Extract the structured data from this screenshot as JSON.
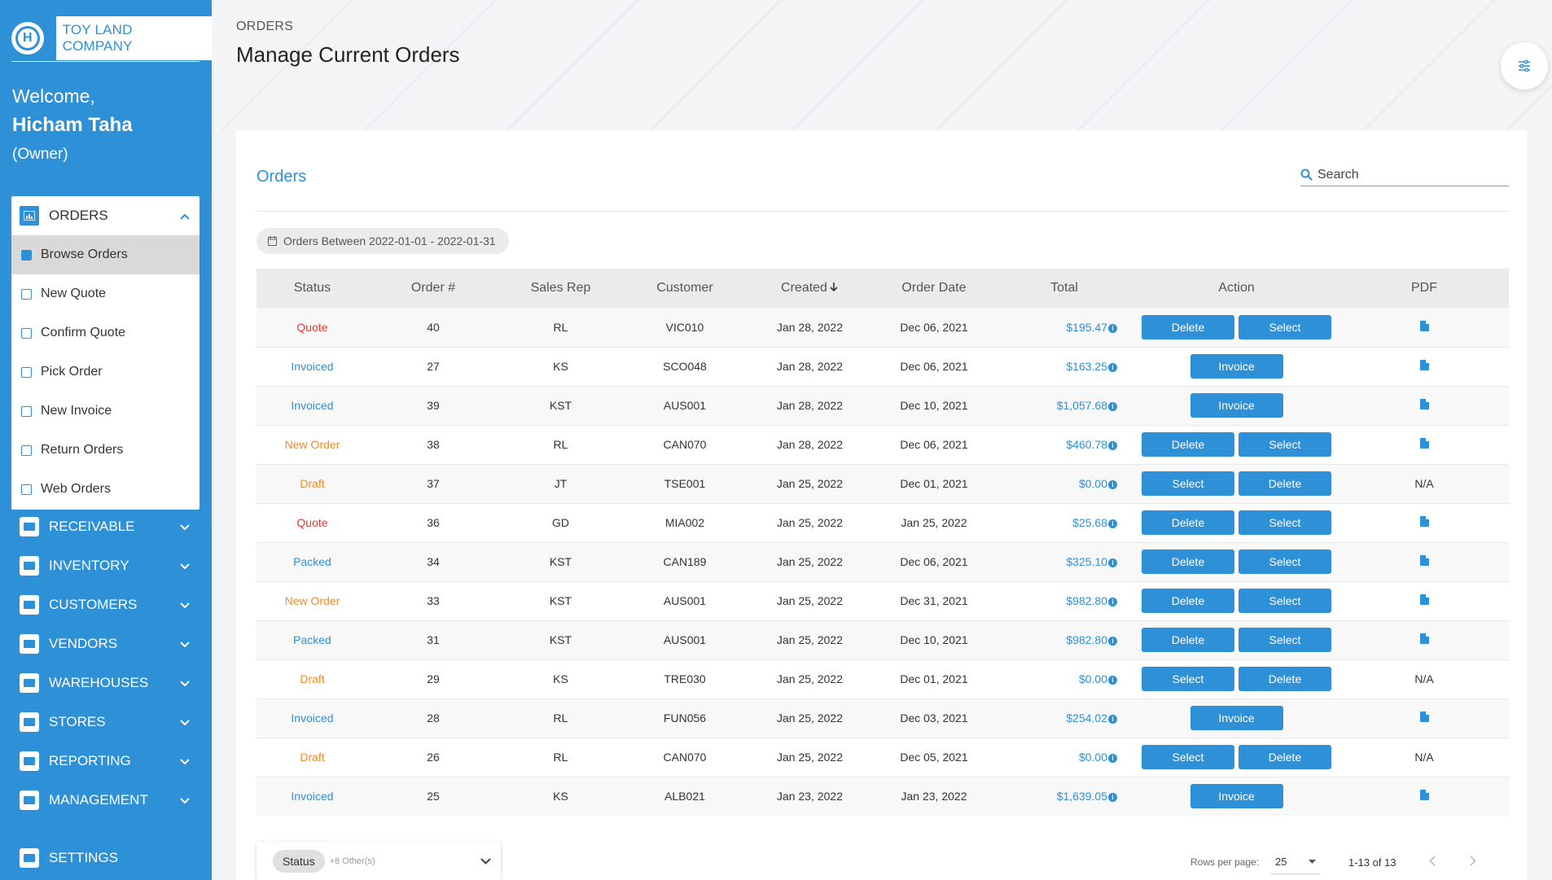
{
  "brand": {
    "name": "TOY LAND COMPANY",
    "logo_letter": "H"
  },
  "welcome": {
    "greeting": "Welcome,",
    "user": "Hicham Taha",
    "role": "(Owner)"
  },
  "sidebar": {
    "orders_label": "ORDERS",
    "orders_items": [
      {
        "label": "Browse Orders",
        "active": true
      },
      {
        "label": "New Quote"
      },
      {
        "label": "Confirm Quote"
      },
      {
        "label": "Pick Order"
      },
      {
        "label": "New Invoice"
      },
      {
        "label": "Return Orders"
      },
      {
        "label": "Web Orders"
      }
    ],
    "nav": [
      "RECEIVABLE",
      "INVENTORY",
      "CUSTOMERS",
      "VENDORS",
      "WAREHOUSES",
      "STORES",
      "REPORTING",
      "MANAGEMENT",
      "SETTINGS"
    ]
  },
  "header": {
    "breadcrumb": "ORDERS",
    "title": "Manage Current Orders"
  },
  "card": {
    "title": "Orders",
    "search_placeholder": "Search",
    "date_chip": "Orders Between 2022-01-01 - 2022-01-31"
  },
  "table": {
    "columns": [
      "Status",
      "Order #",
      "Sales Rep",
      "Customer",
      "Created",
      "Order Date",
      "Total",
      "Action",
      "PDF"
    ],
    "rows": [
      {
        "status": "Quote",
        "order": "40",
        "rep": "RL",
        "customer": "VIC010",
        "created": "Jan 28, 2022",
        "date": "Dec 06, 2021",
        "total": "$195.47",
        "actions": [
          "Delete",
          "Select"
        ],
        "pdf": ""
      },
      {
        "status": "Invoiced",
        "order": "27",
        "rep": "KS",
        "customer": "SCO048",
        "created": "Jan 28, 2022",
        "date": "Dec 06, 2021",
        "total": "$163.25",
        "actions": [
          "Invoice"
        ],
        "pdf": ""
      },
      {
        "status": "Invoiced",
        "order": "39",
        "rep": "KST",
        "customer": "AUS001",
        "created": "Jan 28, 2022",
        "date": "Dec 10, 2021",
        "total": "$1,057.68",
        "actions": [
          "Invoice"
        ],
        "pdf": ""
      },
      {
        "status": "New Order",
        "order": "38",
        "rep": "RL",
        "customer": "CAN070",
        "created": "Jan 28, 2022",
        "date": "Dec 06, 2021",
        "total": "$460.78",
        "actions": [
          "Delete",
          "Select"
        ],
        "pdf": ""
      },
      {
        "status": "Draft",
        "order": "37",
        "rep": "JT",
        "customer": "TSE001",
        "created": "Jan 25, 2022",
        "date": "Dec 01, 2021",
        "total": "$0.00",
        "actions": [
          "Select",
          "Delete"
        ],
        "pdf": "N/A"
      },
      {
        "status": "Quote",
        "order": "36",
        "rep": "GD",
        "customer": "MIA002",
        "created": "Jan 25, 2022",
        "date": "Jan 25, 2022",
        "total": "$25.68",
        "actions": [
          "Delete",
          "Select"
        ],
        "pdf": ""
      },
      {
        "status": "Packed",
        "order": "34",
        "rep": "KST",
        "customer": "CAN189",
        "created": "Jan 25, 2022",
        "date": "Dec 06, 2021",
        "total": "$325.10",
        "actions": [
          "Delete",
          "Select"
        ],
        "pdf": ""
      },
      {
        "status": "New Order",
        "order": "33",
        "rep": "KST",
        "customer": "AUS001",
        "created": "Jan 25, 2022",
        "date": "Dec 31, 2021",
        "total": "$982.80",
        "actions": [
          "Delete",
          "Select"
        ],
        "pdf": ""
      },
      {
        "status": "Packed",
        "order": "31",
        "rep": "KST",
        "customer": "AUS001",
        "created": "Jan 25, 2022",
        "date": "Dec 10, 2021",
        "total": "$982.80",
        "actions": [
          "Delete",
          "Select"
        ],
        "pdf": ""
      },
      {
        "status": "Draft",
        "order": "29",
        "rep": "KS",
        "customer": "TRE030",
        "created": "Jan 25, 2022",
        "date": "Dec 01, 2021",
        "total": "$0.00",
        "actions": [
          "Select",
          "Delete"
        ],
        "pdf": "N/A"
      },
      {
        "status": "Invoiced",
        "order": "28",
        "rep": "RL",
        "customer": "FUN056",
        "created": "Jan 25, 2022",
        "date": "Dec 03, 2021",
        "total": "$254.02",
        "actions": [
          "Invoice"
        ],
        "pdf": ""
      },
      {
        "status": "Draft",
        "order": "26",
        "rep": "RL",
        "customer": "CAN070",
        "created": "Jan 25, 2022",
        "date": "Dec 05, 2021",
        "total": "$0.00",
        "actions": [
          "Select",
          "Delete"
        ],
        "pdf": "N/A"
      },
      {
        "status": "Invoiced",
        "order": "25",
        "rep": "KS",
        "customer": "ALB021",
        "created": "Jan 23, 2022",
        "date": "Jan 23, 2022",
        "total": "$1,639.05",
        "actions": [
          "Invoice"
        ],
        "pdf": ""
      }
    ]
  },
  "footer": {
    "status_chip": "Status",
    "others": "+8 Other(s)",
    "rows_per_page_label": "Rows per page:",
    "rows_per_page": "25",
    "range": "1-13 of 13"
  },
  "colors": {
    "accent": "#2e90d6",
    "quote": "#e53935",
    "invoiced": "#2e90d6",
    "packed": "#2e90d6",
    "new_order": "#f08a2b",
    "draft": "#f08a2b"
  }
}
